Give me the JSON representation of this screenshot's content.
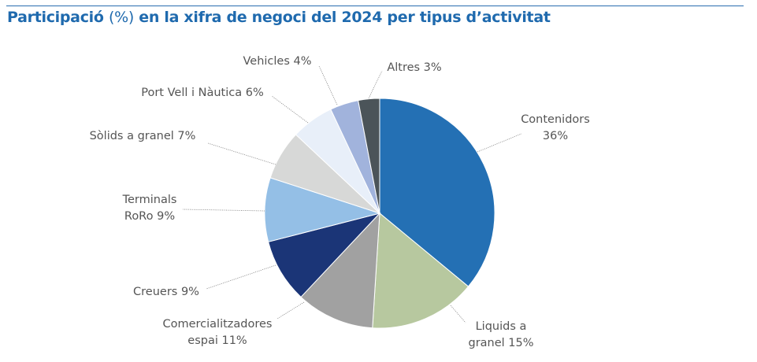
{
  "title": {
    "part1": "Participació ",
    "part2": "(%)",
    "part3": " en la xifra de negoci del 2024 per tipus d’activitat"
  },
  "chart_data": {
    "type": "pie",
    "start": "12 o'clock, clockwise",
    "slices": [
      {
        "label": "Contenidors",
        "value": 36,
        "color": "#2470b4",
        "text": [
          "Contenidors",
          "36%"
        ]
      },
      {
        "label": "Liquids a granel",
        "value": 15,
        "color": "#b7c89f",
        "text": [
          "Liquids a",
          "granel 15%"
        ]
      },
      {
        "label": "Comercialitzadores espai",
        "value": 11,
        "color": "#a1a1a1",
        "text": [
          "Comercialitzadores",
          "espai 11%"
        ]
      },
      {
        "label": "Creuers",
        "value": 9,
        "color": "#1b3577",
        "text": [
          "Creuers 9%"
        ]
      },
      {
        "label": "Terminals RoRo",
        "value": 9,
        "color": "#94bfe6",
        "text": [
          "Terminals",
          "RoRo 9%"
        ]
      },
      {
        "label": "Sòlids a granel",
        "value": 7,
        "color": "#d7d8d7",
        "text": [
          "Sòlids a granel 7%"
        ]
      },
      {
        "label": "Port Vell i Nàutica",
        "value": 6,
        "color": "#e8eff9",
        "text": [
          "Port Vell i Nàutica 6%"
        ]
      },
      {
        "label": "Vehicles",
        "value": 4,
        "color": "#a1b3dc",
        "text": [
          "Vehicles 4%"
        ]
      },
      {
        "label": "Altres",
        "value": 3,
        "color": "#4b5459",
        "text": [
          "Altres 3%"
        ]
      }
    ]
  }
}
